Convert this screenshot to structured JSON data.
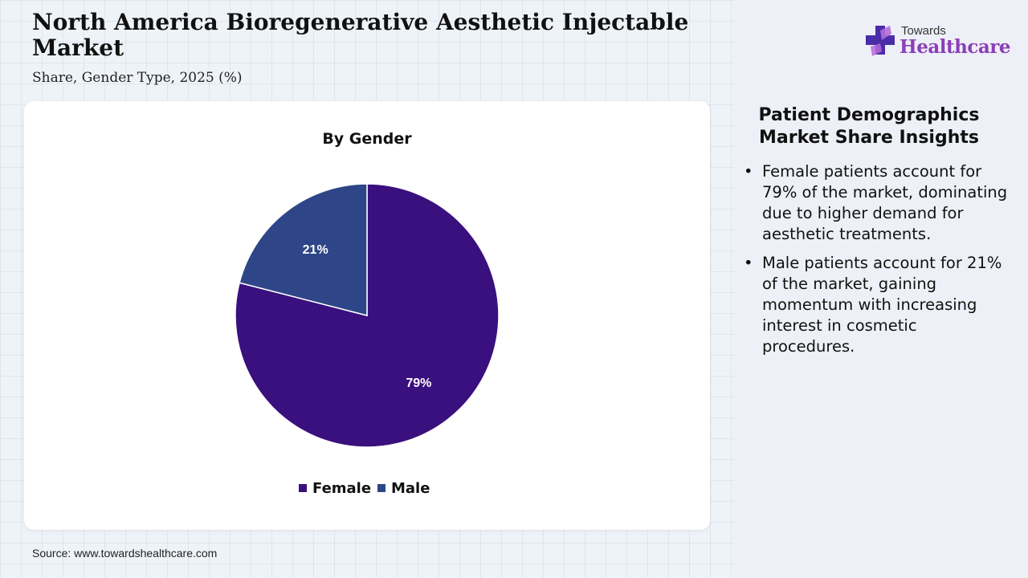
{
  "header": {
    "title": "North America Bioregenerative Aesthetic Injectable Market",
    "subtitle": "Share, Gender Type, 2025 (%)"
  },
  "logo": {
    "line1": "Towards",
    "line2": "Healthcare",
    "icon": "medical-cross-icon",
    "colors": {
      "cross_dark": "#4a2ca8",
      "cross_light": "#b56bd8"
    }
  },
  "chart_data": {
    "type": "pie",
    "title": "By Gender",
    "categories": [
      "Female",
      "Male"
    ],
    "values": [
      79,
      21
    ],
    "labels": [
      "79%",
      "21%"
    ],
    "colors": [
      "#3a0f7e",
      "#2e4687"
    ],
    "legend": "bottom",
    "start_angle_deg": 0,
    "direction": "clockwise"
  },
  "source": "Source: www.towardshealthcare.com",
  "insights": {
    "title": "Patient Demographics Market Share Insights",
    "bullets": [
      "Female patients account for 79% of the market, dominating due to higher demand for aesthetic treatments.",
      "Male patients account for 21% of the market, gaining momentum with increasing interest in cosmetic procedures."
    ]
  }
}
